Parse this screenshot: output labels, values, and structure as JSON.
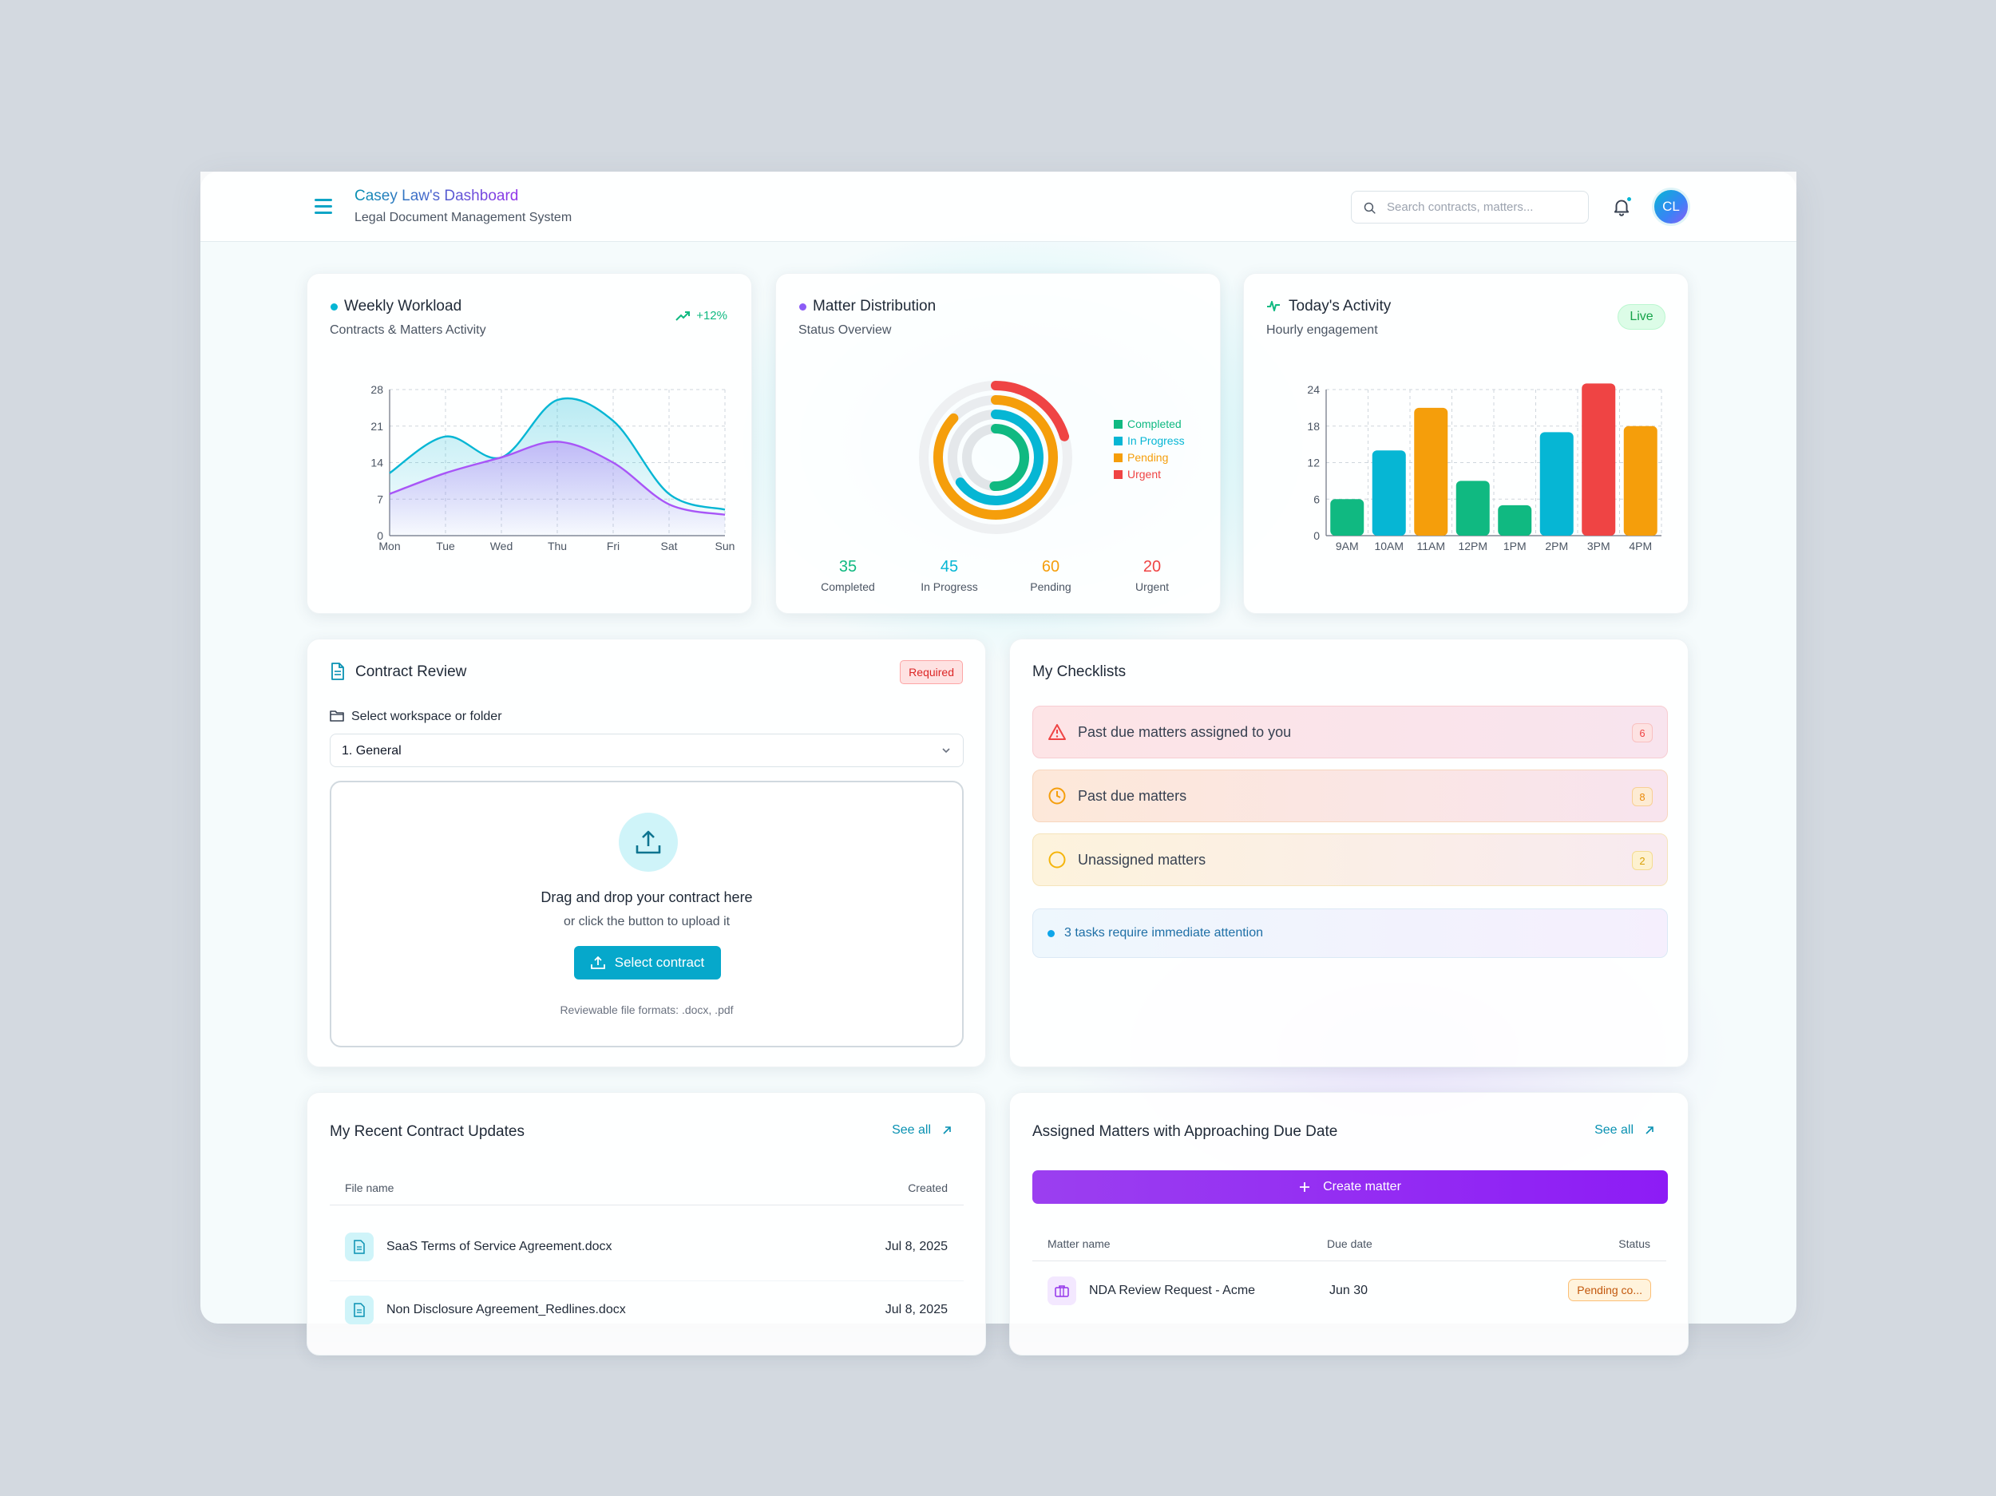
{
  "header": {
    "title": "Casey Law's Dashboard",
    "subtitle": "Legal Document Management System",
    "search_placeholder": "Search contracts, matters...",
    "avatar_initials": "CL"
  },
  "weekly_workload": {
    "title": "Weekly Workload",
    "subtitle": "Contracts & Matters Activity",
    "trend": "+12%"
  },
  "matter_distribution": {
    "title": "Matter Distribution",
    "subtitle": "Status Overview",
    "legend": [
      "Completed",
      "In Progress",
      "Pending",
      "Urgent"
    ],
    "stats": [
      {
        "value": "35",
        "label": "Completed",
        "color": "#10b981"
      },
      {
        "value": "45",
        "label": "In Progress",
        "color": "#06b6d4"
      },
      {
        "value": "60",
        "label": "Pending",
        "color": "#f59e0b"
      },
      {
        "value": "20",
        "label": "Urgent",
        "color": "#ef4444"
      }
    ]
  },
  "todays_activity": {
    "title": "Today's Activity",
    "subtitle": "Hourly engagement",
    "badge": "Live"
  },
  "chart_data": [
    {
      "type": "area",
      "categories": [
        "Mon",
        "Tue",
        "Wed",
        "Thu",
        "Fri",
        "Sat",
        "Sun"
      ],
      "ylim": [
        0,
        28
      ],
      "yticks": [
        0,
        7,
        14,
        21,
        28
      ],
      "series": [
        {
          "values": [
            12,
            19,
            15,
            26,
            22,
            8,
            5
          ],
          "color": "#06b6d4"
        },
        {
          "values": [
            8,
            12,
            15,
            18,
            14,
            6,
            4
          ],
          "color": "#a855f7"
        }
      ]
    },
    {
      "type": "pie",
      "categories": [
        "Completed",
        "In Progress",
        "Pending",
        "Urgent"
      ],
      "values": [
        35,
        45,
        60,
        20
      ],
      "colors": [
        "#10b981",
        "#06b6d4",
        "#f59e0b",
        "#ef4444"
      ]
    },
    {
      "type": "bar",
      "categories": [
        "9AM",
        "10AM",
        "11AM",
        "12PM",
        "1PM",
        "2PM",
        "3PM",
        "4PM"
      ],
      "values": [
        6,
        14,
        21,
        9,
        5,
        17,
        25,
        18
      ],
      "colors": [
        "#10b981",
        "#06b6d4",
        "#f59e0b",
        "#10b981",
        "#10b981",
        "#06b6d4",
        "#ef4444",
        "#f59e0b"
      ],
      "ylim": [
        0,
        24
      ],
      "yticks": [
        0,
        6,
        12,
        18,
        24
      ]
    }
  ],
  "contract_review": {
    "title": "Contract Review",
    "required": "Required",
    "folder_label": "Select workspace or folder",
    "folder_value": "1. General",
    "drop_title": "Drag and drop your contract here",
    "drop_sub": "or click the button to upload it",
    "button": "Select contract",
    "formats": "Reviewable file formats: .docx, .pdf"
  },
  "checklists": {
    "title": "My Checklists",
    "items": [
      {
        "label": "Past due matters assigned to you",
        "count": "6"
      },
      {
        "label": "Past due matters",
        "count": "8"
      },
      {
        "label": "Unassigned matters",
        "count": "2"
      }
    ],
    "attention": "3 tasks require immediate attention"
  },
  "recent_updates": {
    "title": "My Recent Contract Updates",
    "see_all": "See all",
    "col_file": "File name",
    "col_created": "Created",
    "rows": [
      {
        "name": "SaaS Terms of Service Agreement.docx",
        "created": "Jul 8, 2025"
      },
      {
        "name": "Non Disclosure Agreement_Redlines.docx",
        "created": "Jul 8, 2025"
      }
    ]
  },
  "assigned_matters": {
    "title": "Assigned Matters with Approaching Due Date",
    "see_all": "See all",
    "create": "Create matter",
    "col_name": "Matter name",
    "col_due": "Due date",
    "col_status": "Status",
    "rows": [
      {
        "name": "NDA Review Request - Acme",
        "due": "Jun 30",
        "status": "Pending co..."
      }
    ]
  }
}
